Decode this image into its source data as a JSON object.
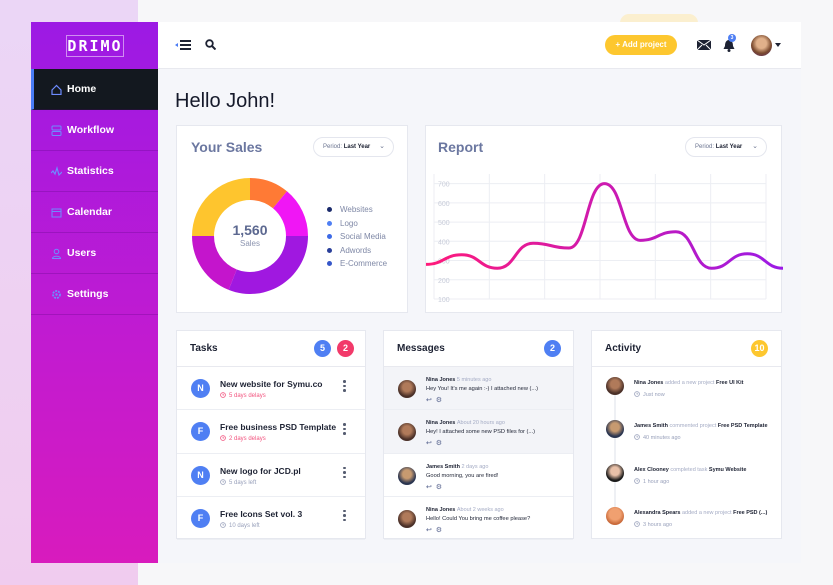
{
  "app": {
    "logo": "DRIMO"
  },
  "sidebar": {
    "items": [
      {
        "label": "Home",
        "icon": "home-icon",
        "active": true
      },
      {
        "label": "Workflow",
        "icon": "workflow-icon"
      },
      {
        "label": "Statistics",
        "icon": "statistics-icon"
      },
      {
        "label": "Calendar",
        "icon": "calendar-icon"
      },
      {
        "label": "Users",
        "icon": "user-icon"
      },
      {
        "label": "Settings",
        "icon": "gear-icon"
      }
    ]
  },
  "header": {
    "add_project": "+  Add project",
    "notifications": "3"
  },
  "greeting": "Hello John!",
  "sales": {
    "title": "Your Sales",
    "period_label": "Period:",
    "period_value": "Last Year",
    "total": "1,560",
    "total_label": "Sales",
    "legend": [
      {
        "label": "Websites",
        "color": "#1a2a6b"
      },
      {
        "label": "Logo",
        "color": "#4f7ff3"
      },
      {
        "label": "Social Media",
        "color": "#3d6ae6"
      },
      {
        "label": "Adwords",
        "color": "#2a3f9a"
      },
      {
        "label": "E-Commerce",
        "color": "#3657c9"
      }
    ],
    "segments": [
      {
        "value": 11,
        "color": "#ff7a35"
      },
      {
        "value": 14,
        "color": "#f016f5"
      },
      {
        "value": 31,
        "color": "#a018e0"
      },
      {
        "value": 19,
        "color": "#c415cc"
      },
      {
        "value": 25,
        "color": "#fec52e"
      }
    ]
  },
  "report": {
    "title": "Report",
    "period_label": "Period:",
    "period_value": "Last Year"
  },
  "chart_data": {
    "type": "line",
    "ylim": [
      100,
      750
    ],
    "yticks": [
      100,
      200,
      300,
      400,
      500,
      600,
      700
    ],
    "grid": true,
    "values": [
      280,
      330,
      260,
      390,
      365,
      700,
      405,
      450,
      260,
      335,
      260
    ],
    "colors": [
      "#ff1a7a",
      "#9b1ae6"
    ]
  },
  "tasks": {
    "title": "Tasks",
    "badge_blue": "5",
    "badge_red": "2",
    "items": [
      {
        "initial": "N",
        "title": "New website for Symu.co",
        "status": "5 days delays",
        "late": true
      },
      {
        "initial": "F",
        "title": "Free business PSD Template",
        "status": "2 days delays",
        "late": true
      },
      {
        "initial": "N",
        "title": "New logo for JCD.pl",
        "status": "5 days left",
        "late": false
      },
      {
        "initial": "F",
        "title": "Free Icons Set vol. 3",
        "status": "10 days left",
        "late": false
      }
    ]
  },
  "messages": {
    "title": "Messages",
    "badge": "2",
    "items": [
      {
        "name": "Nina Jones",
        "time": "5 minutes ago",
        "text": "Hey You! It's me again :-) I attached new (...)",
        "unread": true
      },
      {
        "name": "Nina Jones",
        "time": "About 20 hours ago",
        "text": "Hey! I attached some new PSD files for (...)",
        "unread": true
      },
      {
        "name": "James Smith",
        "time": "2 days ago",
        "text": "Good morning, you are fired!",
        "unread": false
      },
      {
        "name": "Nina Jones",
        "time": "About 2 weeks ago",
        "text": "Hello! Could You bring me coffee please?",
        "unread": false
      }
    ]
  },
  "activity": {
    "title": "Activity",
    "badge": "10",
    "items": [
      {
        "name": "Nina Jones",
        "action": "added a new project",
        "target": "Free UI Kit",
        "time": "Just now"
      },
      {
        "name": "James Smith",
        "action": "commented project",
        "target": "Free PSD Template",
        "time": "40 minutes ago"
      },
      {
        "name": "Alex Clooney",
        "action": "completed task",
        "target": "Symu Website",
        "time": "1 hour ago"
      },
      {
        "name": "Alexandra Spears",
        "action": "added a new project",
        "target": "Free PSD (...)",
        "time": "3 hours ago"
      }
    ]
  }
}
